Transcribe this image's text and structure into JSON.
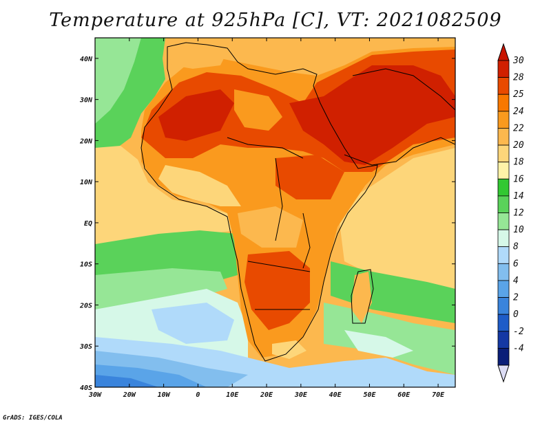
{
  "title": "Temperature at 925hPa [C], VT: 2021082509",
  "credit": "GrADS: IGES/COLA",
  "map": {
    "lon_range": [
      -30,
      75
    ],
    "lat_range": [
      -40,
      45
    ],
    "lat_ticks": [
      {
        "value": 40,
        "label": "40N"
      },
      {
        "value": 30,
        "label": "30N"
      },
      {
        "value": 20,
        "label": "20N"
      },
      {
        "value": 10,
        "label": "10N"
      },
      {
        "value": 0,
        "label": "EQ"
      },
      {
        "value": -10,
        "label": "10S"
      },
      {
        "value": -20,
        "label": "20S"
      },
      {
        "value": -30,
        "label": "30S"
      },
      {
        "value": -40,
        "label": "40S"
      }
    ],
    "lon_ticks": [
      {
        "value": -30,
        "label": "30W"
      },
      {
        "value": -20,
        "label": "20W"
      },
      {
        "value": -10,
        "label": "10W"
      },
      {
        "value": 0,
        "label": "0"
      },
      {
        "value": 10,
        "label": "10E"
      },
      {
        "value": 20,
        "label": "20E"
      },
      {
        "value": 30,
        "label": "30E"
      },
      {
        "value": 40,
        "label": "40E"
      },
      {
        "value": 50,
        "label": "50E"
      },
      {
        "value": 60,
        "label": "60E"
      },
      {
        "value": 70,
        "label": "70E"
      }
    ]
  },
  "colorbar": {
    "levels": [
      {
        "label": "30",
        "color": "#d02000"
      },
      {
        "label": "28",
        "color": "#e84a00"
      },
      {
        "label": "25",
        "color": "#f87800"
      },
      {
        "label": "24",
        "color": "#fa9a1e"
      },
      {
        "label": "22",
        "color": "#fcb84e"
      },
      {
        "label": "20",
        "color": "#fdd67a"
      },
      {
        "label": "18",
        "color": "#fef3a8"
      },
      {
        "label": "16",
        "color": "#32c832"
      },
      {
        "label": "14",
        "color": "#5ad25a"
      },
      {
        "label": "12",
        "color": "#96e696"
      },
      {
        "label": "10",
        "color": "#d6f8e8"
      },
      {
        "label": "8",
        "color": "#b0dafa"
      },
      {
        "label": "6",
        "color": "#82beee"
      },
      {
        "label": "4",
        "color": "#5aa4e8"
      },
      {
        "label": "2",
        "color": "#3a84dc"
      },
      {
        "label": "0",
        "color": "#1e5cc8"
      },
      {
        "label": "-2",
        "color": "#1438a4"
      },
      {
        "label": "-4",
        "color": "#0a1e78"
      }
    ],
    "top_color": "#c81400",
    "bottom_color": "#dcdcf4"
  }
}
